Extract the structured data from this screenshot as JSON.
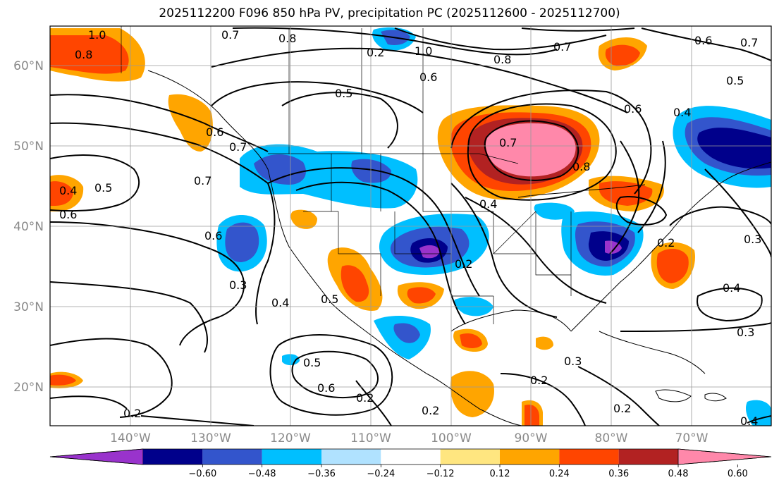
{
  "title": "2025112200 F096 850 hPa PV, precipitation PC (2025112600 - 2025112700)",
  "latitude_labels": [
    "60°N",
    "50°N",
    "40°N",
    "30°N",
    "20°N"
  ],
  "longitude_labels": [
    "140°W",
    "130°W",
    "120°W",
    "110°W",
    "100°W",
    "90°W",
    "80°W",
    "70°W"
  ],
  "colorbar": {
    "tick_labels": [
      "−0.60",
      "−0.48",
      "−0.36",
      "−0.24",
      "−0.12",
      "0.12",
      "0.24",
      "0.36",
      "0.48",
      "0.60"
    ],
    "colors": [
      "#9933cc",
      "#00008b",
      "#3355cc",
      "#00bfff",
      "#b0e2ff",
      "#ffffff",
      "#ffe680",
      "#ffa500",
      "#ff4500",
      "#b22222",
      "#ff88aa"
    ]
  },
  "contour_labels": [
    {
      "text": "0.7"
    },
    {
      "text": "0.8"
    },
    {
      "text": "1.0"
    },
    {
      "text": "0.8"
    },
    {
      "text": "0.7"
    },
    {
      "text": "0.6"
    },
    {
      "text": "0.7"
    },
    {
      "text": "1.0"
    },
    {
      "text": "0.8"
    },
    {
      "text": "0.5"
    },
    {
      "text": "0.6"
    },
    {
      "text": "0.6"
    },
    {
      "text": "0.4"
    },
    {
      "text": "0.5"
    },
    {
      "text": "0.7"
    },
    {
      "text": "0.8"
    },
    {
      "text": "0.7"
    },
    {
      "text": "0.6"
    },
    {
      "text": "0.7"
    },
    {
      "text": "0.4"
    },
    {
      "text": "0.5"
    },
    {
      "text": "0.6"
    },
    {
      "text": "0.6"
    },
    {
      "text": "0.3"
    },
    {
      "text": "0.4"
    },
    {
      "text": "0.5"
    },
    {
      "text": "0.2"
    },
    {
      "text": "0.4"
    },
    {
      "text": "0.2"
    },
    {
      "text": "0.3"
    },
    {
      "text": "0.4"
    },
    {
      "text": "0.3"
    },
    {
      "text": "0.3"
    },
    {
      "text": "0.2"
    },
    {
      "text": "0.5"
    },
    {
      "text": "0.6"
    },
    {
      "text": "0.2"
    },
    {
      "text": "0.2"
    },
    {
      "text": "0.2"
    },
    {
      "text": "0.2"
    },
    {
      "text": "0.4"
    },
    {
      "text": "0.2"
    }
  ]
}
